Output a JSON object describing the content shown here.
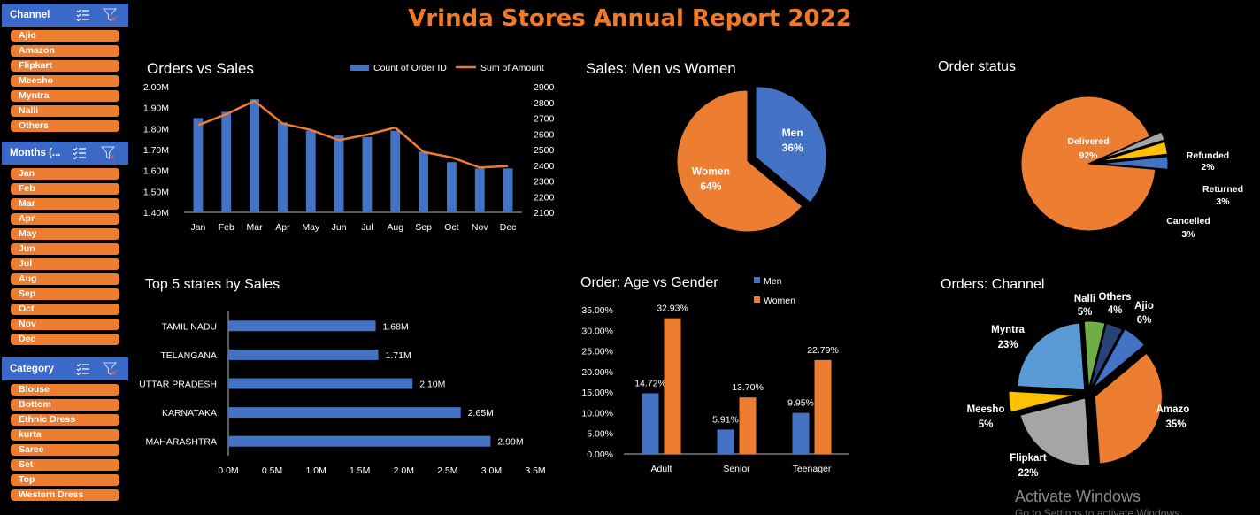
{
  "report_title": "Vrinda Stores Annual Report 2022",
  "slicers": {
    "channel": {
      "title": "Channel",
      "items": [
        "Ajio",
        "Amazon",
        "Flipkart",
        "Meesho",
        "Myntra",
        "Nalli",
        "Others"
      ]
    },
    "months": {
      "title": "Months (...",
      "items": [
        "Jan",
        "Feb",
        "Mar",
        "Apr",
        "May",
        "Jun",
        "Jul",
        "Aug",
        "Sep",
        "Oct",
        "Nov",
        "Dec"
      ]
    },
    "category": {
      "title": "Category",
      "items": [
        "Blouse",
        "Bottom",
        "Ethnic Dress",
        "kurta",
        "Saree",
        "Set",
        "Top",
        "Western Dress"
      ]
    }
  },
  "icons": {
    "multi_select": "multi-select-icon",
    "clear_filter": "clear-filter-icon"
  },
  "colors": {
    "blue": "#4472c4",
    "orange": "#ed7d31",
    "gray": "#a5a5a5",
    "yellow": "#ffc000",
    "lightblue": "#5b9bd5",
    "green": "#70ad47",
    "darkblue": "#264478"
  },
  "watermark": {
    "line1": "Activate Windows",
    "line2": "Go to Settings to activate Windows."
  },
  "chart_data": [
    {
      "id": "orders_vs_sales",
      "type": "bar+line",
      "title": "Orders vs Sales",
      "categories": [
        "Jan",
        "Feb",
        "Mar",
        "Apr",
        "May",
        "Jun",
        "Jul",
        "Aug",
        "Sep",
        "Oct",
        "Nov",
        "Dec"
      ],
      "series": [
        {
          "name": "Count of Order ID",
          "type": "bar",
          "axis": "left",
          "values": [
            1.85,
            1.88,
            1.94,
            1.83,
            1.79,
            1.77,
            1.76,
            1.79,
            1.69,
            1.64,
            1.61,
            1.61
          ]
        },
        {
          "name": "Sum of Amount",
          "type": "line",
          "axis": "right",
          "values": [
            2655,
            2725,
            2810,
            2665,
            2625,
            2560,
            2595,
            2640,
            2485,
            2450,
            2385,
            2395
          ]
        }
      ],
      "y_left_ticks": [
        "2.00M",
        "1.90M",
        "1.80M",
        "1.70M",
        "1.60M",
        "1.50M",
        "1.40M"
      ],
      "y_left_range": [
        1.4,
        2.0
      ],
      "y_right_ticks": [
        "2900",
        "2800",
        "2700",
        "2600",
        "2500",
        "2400",
        "2300",
        "2200",
        "2100"
      ],
      "y_right_range": [
        2100,
        2900
      ]
    },
    {
      "id": "sales_men_women",
      "type": "pie",
      "title": "Sales: Men vs Women",
      "slices": [
        {
          "name": "Men",
          "label": "36%",
          "value": 36,
          "color": "#4472c4"
        },
        {
          "name": "Women",
          "label": "64%",
          "value": 64,
          "color": "#ed7d31"
        }
      ]
    },
    {
      "id": "order_status",
      "type": "pie",
      "title": "Order status",
      "slices": [
        {
          "name": "Delivered",
          "label": "92%",
          "value": 92,
          "color": "#ed7d31"
        },
        {
          "name": "Refunded",
          "label": "2%",
          "value": 2,
          "color": "#a5a5a5"
        },
        {
          "name": "Returned",
          "label": "3%",
          "value": 3,
          "color": "#ffc000"
        },
        {
          "name": "Cancelled",
          "label": "3%",
          "value": 3,
          "color": "#4472c4"
        }
      ]
    },
    {
      "id": "top5_states",
      "type": "bar",
      "orientation": "horizontal",
      "title": "Top 5 states by Sales",
      "categories": [
        "TAMIL NADU",
        "TELANGANA",
        "UTTAR PRADESH",
        "KARNATAKA",
        "MAHARASHTRA"
      ],
      "values": [
        1.68,
        1.71,
        2.1,
        2.65,
        2.99
      ],
      "value_labels": [
        "1.68M",
        "1.71M",
        "2.10M",
        "2.65M",
        "2.99M"
      ],
      "x_ticks": [
        "0.0M",
        "0.5M",
        "1.0M",
        "1.5M",
        "2.0M",
        "2.5M",
        "3.0M",
        "3.5M"
      ],
      "xlim": [
        0,
        3.5
      ]
    },
    {
      "id": "age_vs_gender",
      "type": "bar",
      "title": "Order: Age vs Gender",
      "categories": [
        "Adult",
        "Senior",
        "Teenager"
      ],
      "series": [
        {
          "name": "Men",
          "values": [
            14.72,
            5.91,
            9.95
          ],
          "labels": [
            "14.72%",
            "5.91%",
            "9.95%"
          ]
        },
        {
          "name": "Women",
          "values": [
            32.93,
            13.7,
            22.79
          ],
          "labels": [
            "32.93%",
            "13.70%",
            "22.79%"
          ]
        }
      ],
      "y_ticks": [
        "35.00%",
        "30.00%",
        "25.00%",
        "20.00%",
        "15.00%",
        "10.00%",
        "5.00%",
        "0.00%"
      ],
      "ylim": [
        0,
        35
      ]
    },
    {
      "id": "orders_channel",
      "type": "pie",
      "title": "Orders: Channel",
      "slices": [
        {
          "name": "Amazon",
          "label": "35%",
          "value": 35,
          "color": "#ed7d31"
        },
        {
          "name": "Flipkart",
          "label": "22%",
          "value": 22,
          "color": "#a5a5a5"
        },
        {
          "name": "Meesho",
          "label": "5%",
          "value": 5,
          "color": "#ffc000"
        },
        {
          "name": "Myntra",
          "label": "23%",
          "value": 23,
          "color": "#5b9bd5"
        },
        {
          "name": "Nalli",
          "label": "5%",
          "value": 5,
          "color": "#70ad47"
        },
        {
          "name": "Others",
          "label": "4%",
          "value": 4,
          "color": "#264478"
        },
        {
          "name": "Ajio",
          "label": "6%",
          "value": 6,
          "color": "#4472c4"
        }
      ]
    }
  ]
}
